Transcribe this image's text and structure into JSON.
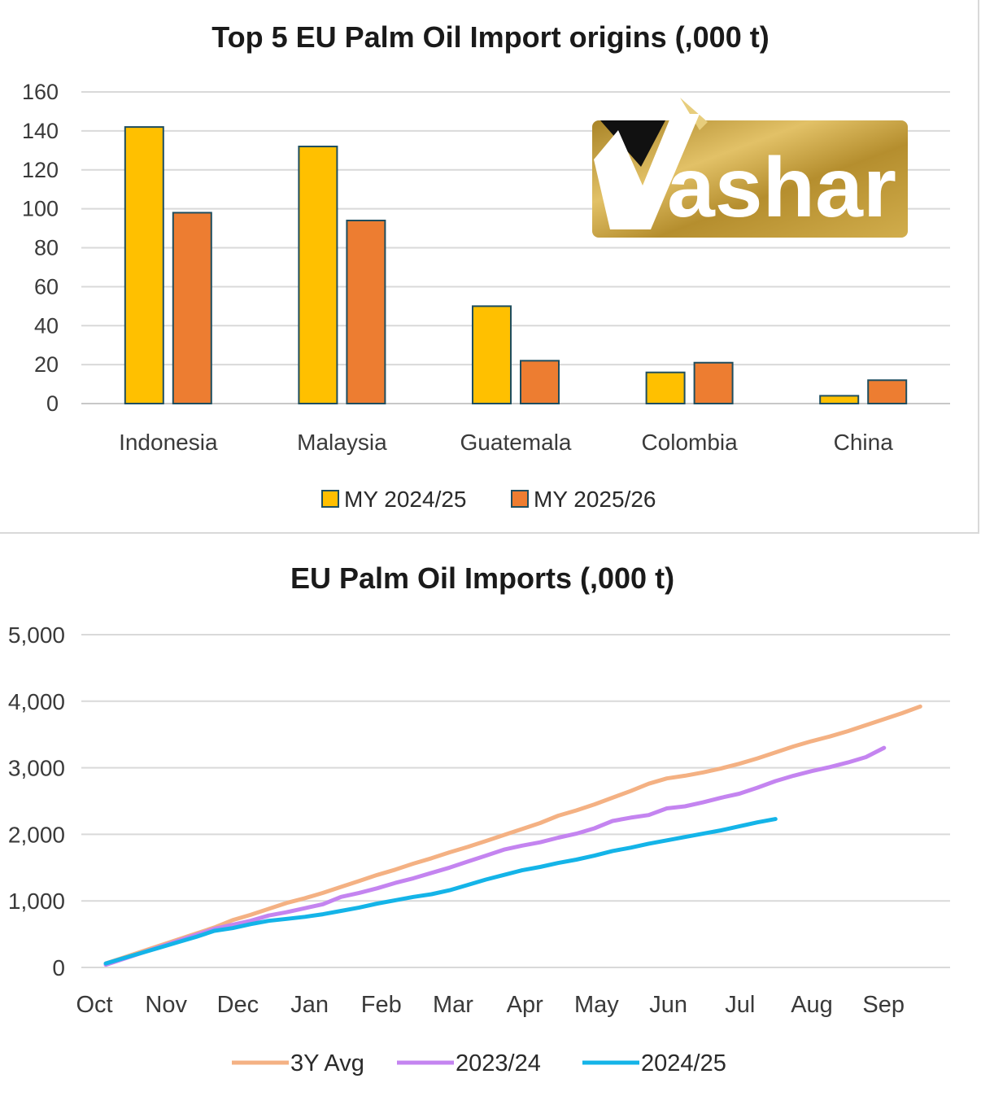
{
  "chart_data": [
    {
      "type": "bar",
      "title": "Top 5 EU Palm Oil Import origins (,000 t)",
      "categories": [
        "Indonesia",
        "Malaysia",
        "Guatemala",
        "Colombia",
        "China"
      ],
      "series": [
        {
          "name": "MY 2024/25",
          "values": [
            142,
            132,
            50,
            16,
            4
          ],
          "color": "#ffc000"
        },
        {
          "name": "MY 2025/26",
          "values": [
            98,
            94,
            22,
            21,
            12
          ],
          "color": "#ed7d31"
        }
      ],
      "ylim": [
        0,
        160
      ],
      "yticks": [
        "0",
        "20",
        "40",
        "60",
        "80",
        "100",
        "120",
        "140",
        "160"
      ],
      "bar_border_color": "#1f4e5f",
      "grid": true,
      "legend_position": "bottom"
    },
    {
      "type": "line",
      "title": "EU Palm Oil Imports (,000 t)",
      "x_labels": [
        "Oct",
        "Nov",
        "Dec",
        "Jan",
        "Feb",
        "Mar",
        "Apr",
        "May",
        "Jun",
        "Jul",
        "Aug",
        "Sep"
      ],
      "ylim": [
        0,
        5000
      ],
      "yticks": [
        "0",
        "1,000",
        "2,000",
        "3,000",
        "4,000",
        "5,000"
      ],
      "series": [
        {
          "name": "3Y Avg",
          "color": "#f4b183",
          "values": [
            60,
            150,
            240,
            330,
            420,
            510,
            600,
            710,
            790,
            880,
            970,
            1040,
            1120,
            1210,
            1300,
            1390,
            1470,
            1560,
            1640,
            1730,
            1810,
            1900,
            1990,
            2080,
            2170,
            2280,
            2360,
            2450,
            2550,
            2650,
            2760,
            2840,
            2880,
            2930,
            2990,
            3060,
            3140,
            3230,
            3320,
            3400,
            3470,
            3550,
            3640,
            3730,
            3820,
            3920
          ]
        },
        {
          "name": "2023/24",
          "color": "#c484f0",
          "values": [
            40,
            130,
            220,
            310,
            400,
            490,
            580,
            640,
            700,
            780,
            830,
            890,
            950,
            1060,
            1120,
            1190,
            1270,
            1340,
            1420,
            1500,
            1590,
            1680,
            1770,
            1830,
            1880,
            1950,
            2010,
            2090,
            2200,
            2250,
            2290,
            2390,
            2420,
            2480,
            2550,
            2610,
            2700,
            2800,
            2880,
            2950,
            3010,
            3080,
            3160,
            3300
          ]
        },
        {
          "name": "2024/25",
          "color": "#14b4e8",
          "values": [
            60,
            140,
            220,
            300,
            380,
            460,
            550,
            590,
            650,
            700,
            730,
            760,
            800,
            850,
            900,
            960,
            1010,
            1060,
            1100,
            1160,
            1240,
            1320,
            1390,
            1460,
            1510,
            1570,
            1620,
            1680,
            1750,
            1800,
            1860,
            1910,
            1960,
            2010,
            2060,
            2120,
            2180,
            2230
          ]
        }
      ],
      "grid": true,
      "legend_position": "bottom"
    }
  ],
  "logo": {
    "text": "ashar",
    "icon": "yashar-y-logo-icon"
  }
}
